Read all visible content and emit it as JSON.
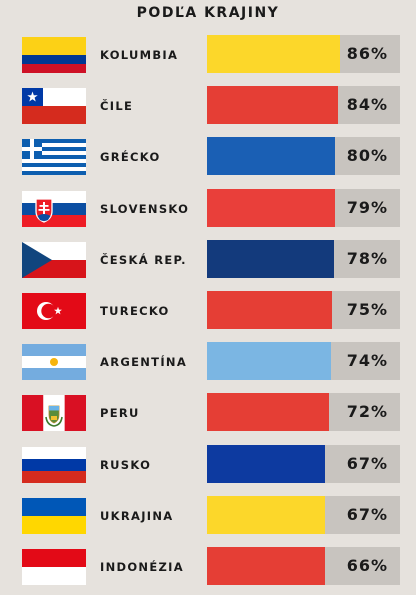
{
  "chart_data": {
    "type": "bar",
    "title": "PODĽA KRAJINY",
    "orientation": "horizontal",
    "xlim": [
      0,
      100
    ],
    "categories": [
      "KOLUMBIA",
      "ČILE",
      "GRÉCKO",
      "SLOVENSKO",
      "ČESKÁ REP.",
      "TURECKO",
      "ARGENTÍNA",
      "PERU",
      "RUSKO",
      "UKRAJINA",
      "INDONÉZIA"
    ],
    "values": [
      86,
      84,
      80,
      79,
      78,
      75,
      74,
      72,
      67,
      67,
      66
    ],
    "value_labels": [
      "86%",
      "84%",
      "80%",
      "79%",
      "78%",
      "75%",
      "74%",
      "72%",
      "67%",
      "67%",
      "66%"
    ],
    "bar_colors": [
      "#fcd72a",
      "#e53e35",
      "#1a5fb4",
      "#e93f3a",
      "#133a7c",
      "#e53e35",
      "#7bb6e3",
      "#e53e35",
      "#0d3aa0",
      "#fcd72a",
      "#e53e35"
    ],
    "flag_icons": [
      "colombia-flag-icon",
      "chile-flag-icon",
      "greece-flag-icon",
      "slovakia-flag-icon",
      "czech-republic-flag-icon",
      "turkey-flag-icon",
      "argentina-flag-icon",
      "peru-flag-icon",
      "russia-flag-icon",
      "ukraine-flag-icon",
      "indonesia-flag-icon"
    ]
  },
  "track_color": "#c8c4bf",
  "background_color": "#e6e2dd"
}
